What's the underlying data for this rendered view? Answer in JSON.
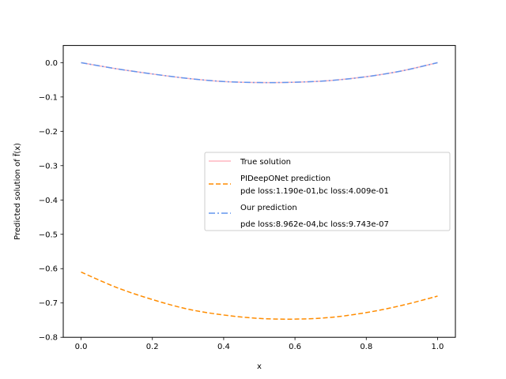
{
  "chart_data": {
    "type": "line",
    "title": "",
    "xlabel": "x",
    "ylabel": "Predicted solution of f̃(x)",
    "xlim": [
      -0.05,
      1.05
    ],
    "ylim": [
      -0.8,
      0.05
    ],
    "xticks": [
      0.0,
      0.2,
      0.4,
      0.6,
      0.8,
      1.0
    ],
    "xtick_labels": [
      "0.0",
      "0.2",
      "0.4",
      "0.6",
      "0.8",
      "1.0"
    ],
    "yticks": [
      0.0,
      -0.1,
      -0.2,
      -0.3,
      -0.4,
      -0.5,
      -0.6,
      -0.7,
      -0.8
    ],
    "ytick_labels": [
      "0.0",
      "−0.1",
      "−0.2",
      "−0.3",
      "−0.4",
      "−0.5",
      "−0.6",
      "−0.7",
      "−0.8"
    ],
    "grid": false,
    "legend_position": "center-right",
    "x": [
      0.0,
      0.1,
      0.2,
      0.3,
      0.4,
      0.5,
      0.6,
      0.7,
      0.8,
      0.9,
      1.0
    ],
    "series": [
      {
        "name": "True solution",
        "style": "solid",
        "color": "#ffb6c1",
        "values": [
          0.0,
          -0.018,
          -0.033,
          -0.046,
          -0.055,
          -0.058,
          -0.057,
          -0.052,
          -0.041,
          -0.024,
          0.0
        ]
      },
      {
        "name": "PIDeepONet prediction",
        "legend_sub": "pde loss:1.190e-01,bc loss:4.009e-01",
        "style": "dashed",
        "color": "#ff8c00",
        "values": [
          -0.61,
          -0.655,
          -0.69,
          -0.718,
          -0.735,
          -0.745,
          -0.747,
          -0.742,
          -0.728,
          -0.707,
          -0.68
        ]
      },
      {
        "name": "Our prediction",
        "legend_sub": "pde loss:8.962e-04,bc loss:9.743e-07",
        "style": "dashdot",
        "color": "#6495ed",
        "values": [
          0.0,
          -0.018,
          -0.033,
          -0.046,
          -0.055,
          -0.058,
          -0.057,
          -0.052,
          -0.041,
          -0.024,
          0.0
        ]
      }
    ]
  }
}
